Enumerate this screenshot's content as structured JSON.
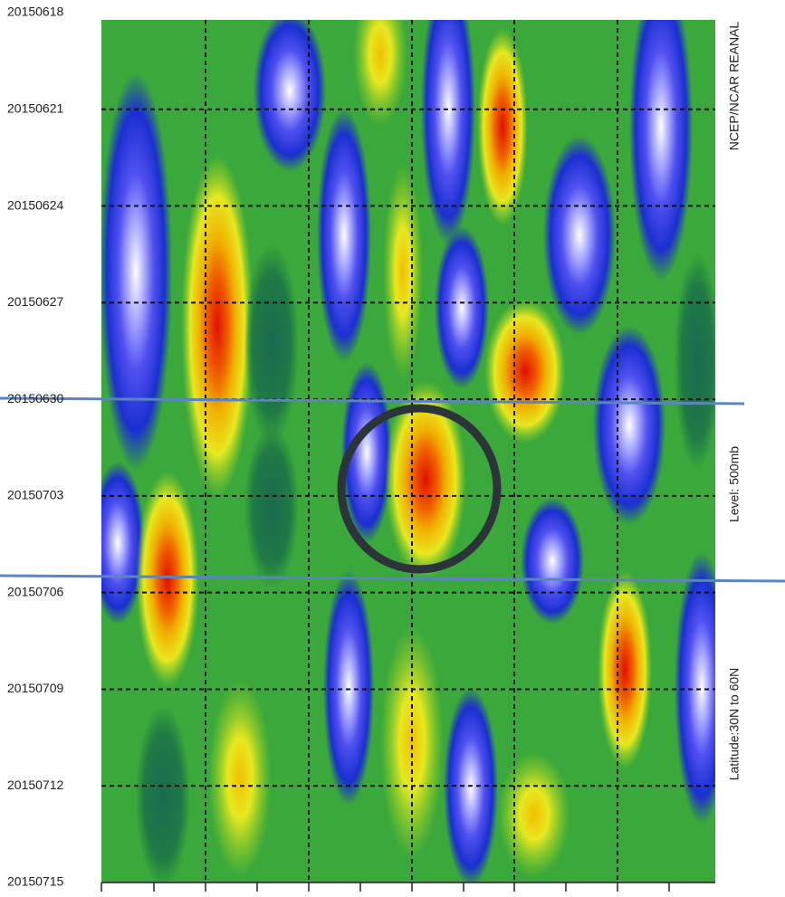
{
  "chart_data": {
    "type": "contour",
    "categories": [
      "20150618",
      "20150621",
      "20150624",
      "20150627",
      "20150630",
      "20150703",
      "20150706",
      "20150709",
      "20150712",
      "20150715"
    ],
    "annotations": [
      "NCEP/NCAR REANAL",
      "Level:  500mb",
      "Latitude:30N to 60N"
    ],
    "grid": true
  }
}
